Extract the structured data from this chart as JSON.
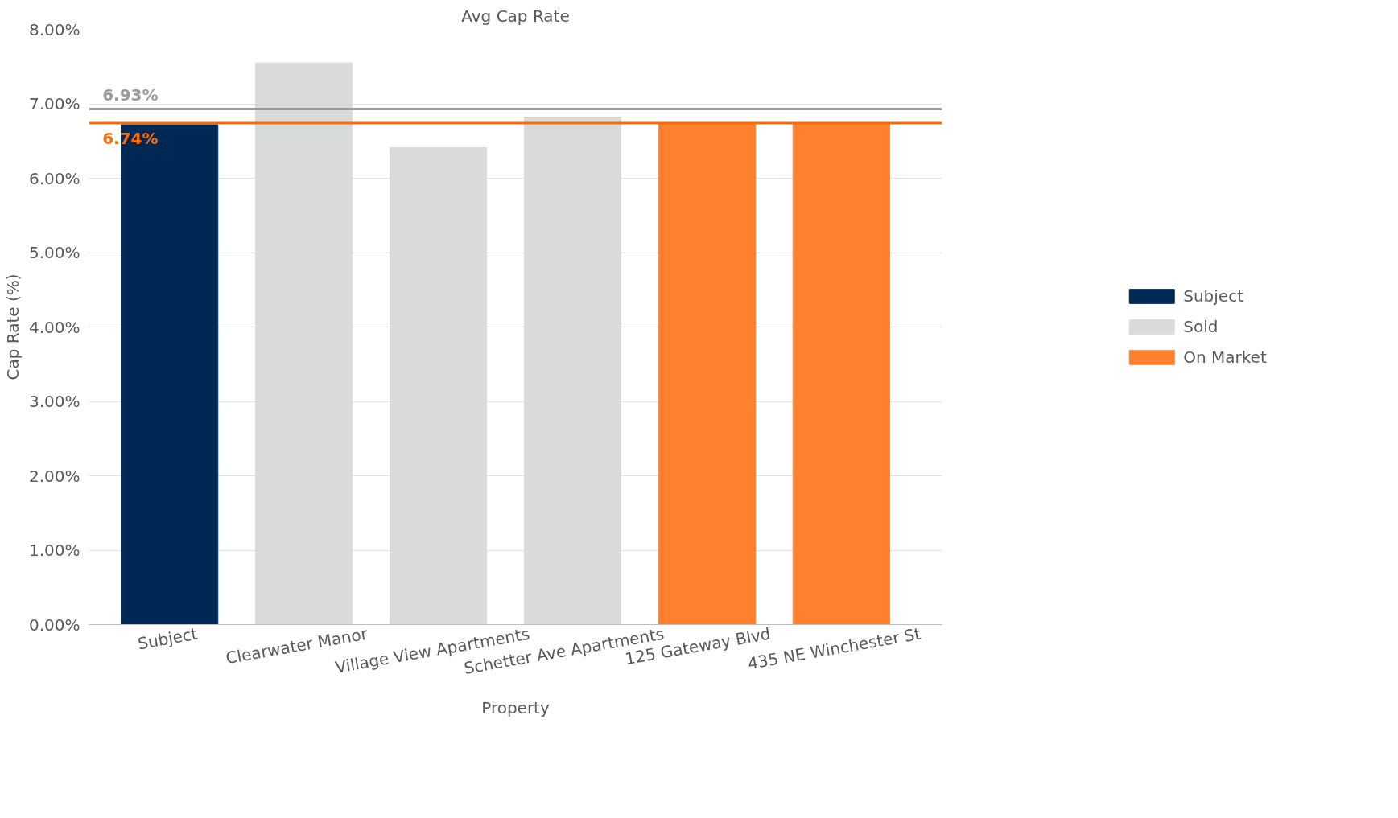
{
  "chart_data": {
    "type": "bar",
    "title": "Avg Cap Rate",
    "xlabel": "Property",
    "ylabel": "Cap Rate (%)",
    "categories": [
      "Subject",
      "Clearwater Manor",
      "Village View Apartments",
      "Schetter Ave Apartments",
      "125 Gateway Blvd",
      "435 NE Winchester St"
    ],
    "stacked": true,
    "series": [
      {
        "name": "Subject",
        "color": "#002855",
        "values": [
          6.72,
          null,
          null,
          null,
          null,
          null
        ]
      },
      {
        "name": "Sold",
        "color": "#d9dbd9",
        "values": [
          null,
          7.55,
          6.41,
          6.82,
          null,
          null
        ]
      },
      {
        "name": "On Market",
        "color": "#ff8130",
        "values": [
          null,
          null,
          null,
          null,
          6.74,
          6.74
        ]
      }
    ],
    "ylim": [
      0,
      8
    ],
    "yticks": [
      {
        "value": 0,
        "label": "0.00%"
      },
      {
        "value": 1,
        "label": "1.00%"
      },
      {
        "value": 2,
        "label": "2.00%"
      },
      {
        "value": 3,
        "label": "3.00%"
      },
      {
        "value": 4,
        "label": "4.00%"
      },
      {
        "value": 5,
        "label": "5.00%"
      },
      {
        "value": 6,
        "label": "6.00%"
      },
      {
        "value": 7,
        "label": "7.00%"
      },
      {
        "value": 8,
        "label": "8.00%"
      }
    ],
    "ref_lines": [
      {
        "axis": "y",
        "value": 6.93,
        "label": "6.93%",
        "color": "#999999"
      },
      {
        "axis": "y",
        "value": 6.74,
        "label": "6.74%",
        "color": "#ff6a00"
      }
    ],
    "grid": "y",
    "legend": "right"
  }
}
